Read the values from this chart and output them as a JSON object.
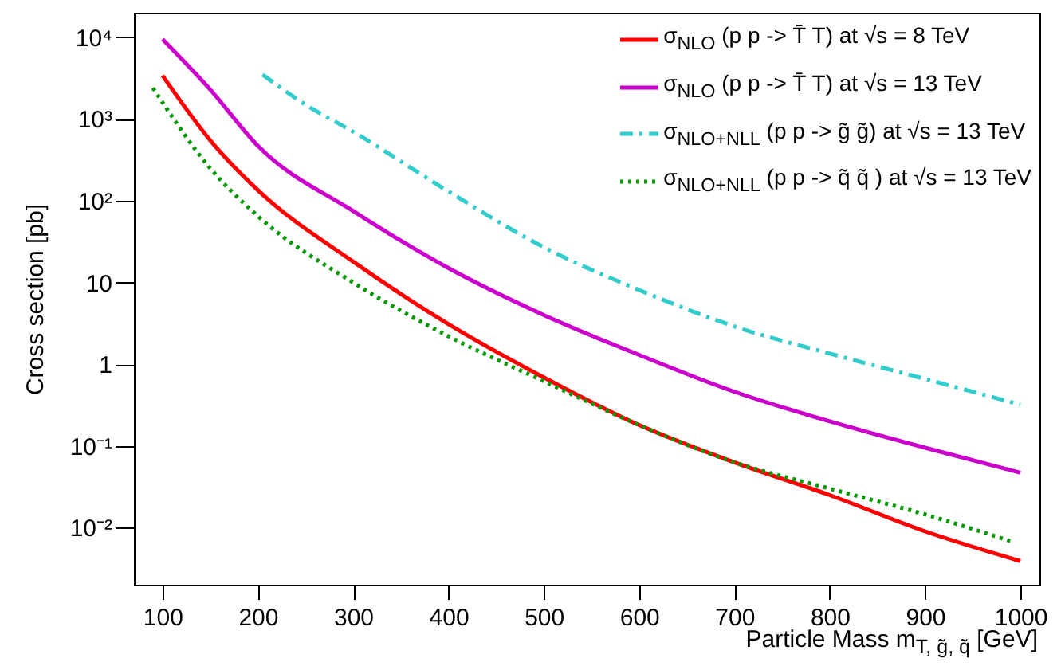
{
  "chart_data": {
    "type": "line",
    "xlabel": "Particle Mass m$_{T, g̃, q̃}$ [GeV]",
    "ylabel": "Cross section [pb]",
    "log": "y",
    "grid": false,
    "legend": "top right",
    "xlim": [
      70,
      1020
    ],
    "xticks": [
      100,
      200,
      300,
      400,
      500,
      600,
      700,
      800,
      900,
      1000
    ],
    "ylim": [
      0.002,
      20000
    ],
    "yticks": [
      {
        "value": 0.01,
        "label": "10⁻²"
      },
      {
        "value": 0.1,
        "label": "10⁻¹"
      },
      1,
      10,
      {
        "value": 100,
        "label": "10²"
      },
      {
        "value": 1000,
        "label": "10³"
      },
      {
        "value": 10000,
        "label": "10⁴"
      }
    ],
    "series": [
      {
        "name": "σ$_{NLO}$ (p p -> T̄ T) at √s = 8 TeV",
        "color": "#ff0000",
        "line_style": "solid",
        "x": [
          100,
          150,
          200,
          300,
          400,
          500,
          600,
          700,
          800,
          900,
          1000
        ],
        "values": [
          3400,
          550,
          135,
          18,
          3.1,
          0.69,
          0.18,
          0.063,
          0.025,
          0.009,
          0.0039
        ]
      },
      {
        "name": "σ$_{NLO}$ (p p -> T̄ T) at √s = 13 TeV",
        "color": "#cc00cc",
        "line_style": "solid",
        "x": [
          100,
          150,
          200,
          300,
          400,
          500,
          600,
          700,
          800,
          900,
          1000
        ],
        "values": [
          9500,
          2300,
          470,
          75,
          15,
          4,
          1.3,
          0.46,
          0.2,
          0.095,
          0.047
        ]
      },
      {
        "name": "σ$_{NLO+NLL}$ (p p -> g̃ g̃) at √s = 13 TeV",
        "color": "#33cccc",
        "line_style": "dashed",
        "x": [
          205,
          250,
          300,
          400,
          500,
          600,
          700,
          800,
          900,
          1000
        ],
        "values": [
          3500,
          1500,
          700,
          130,
          27,
          8.1,
          2.9,
          1.35,
          0.66,
          0.32
        ]
      },
      {
        "name": "σ$_{NLO+NLL}$ (p p -> q̃ q̃ ) at √s = 13 TeV",
        "color": "#009900",
        "line_style": "dotted",
        "x": [
          90,
          150,
          200,
          300,
          400,
          500,
          600,
          700,
          800,
          900,
          990
        ],
        "values": [
          2400,
          250,
          65,
          10,
          2.2,
          0.62,
          0.18,
          0.063,
          0.03,
          0.0145,
          0.0068
        ]
      }
    ]
  }
}
